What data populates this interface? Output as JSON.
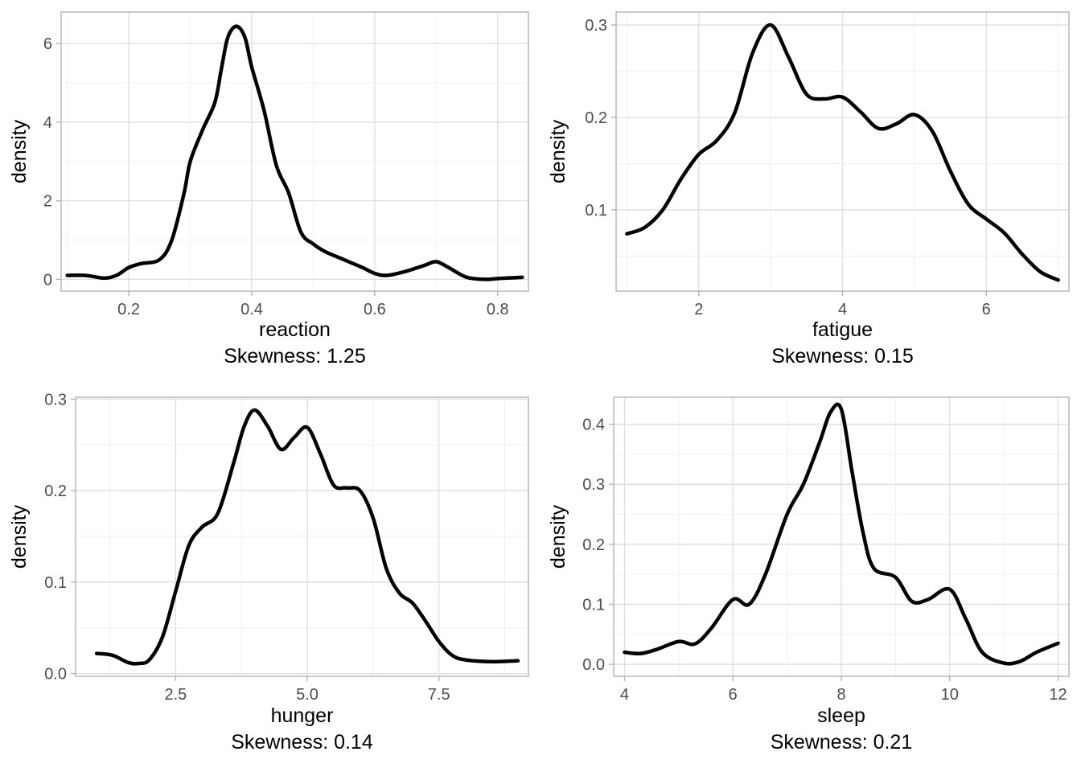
{
  "chart_data": [
    {
      "type": "line",
      "xlabel": "reaction",
      "skew_caption": "Skewness: 1.25",
      "ylabel": "density",
      "xlim": [
        0.09,
        0.85
      ],
      "ylim": [
        -0.3,
        6.8
      ],
      "xticks": [
        0.2,
        0.4,
        0.6,
        0.8
      ],
      "xtick_labels": [
        "0.2",
        "0.4",
        "0.6",
        "0.8"
      ],
      "yticks": [
        0,
        2,
        4,
        6
      ],
      "ytick_labels": [
        "0",
        "2",
        "4",
        "6"
      ],
      "grid": true,
      "series": [
        {
          "x": [
            0.1,
            0.13,
            0.16,
            0.18,
            0.2,
            0.22,
            0.25,
            0.27,
            0.29,
            0.3,
            0.32,
            0.34,
            0.35,
            0.36,
            0.37,
            0.38,
            0.39,
            0.4,
            0.42,
            0.44,
            0.46,
            0.48,
            0.5,
            0.52,
            0.55,
            0.58,
            0.6,
            0.62,
            0.65,
            0.68,
            0.7,
            0.72,
            0.75,
            0.78,
            0.8,
            0.84
          ],
          "y": [
            0.1,
            0.1,
            0.03,
            0.1,
            0.3,
            0.4,
            0.5,
            1.0,
            2.2,
            3.0,
            3.8,
            4.5,
            5.3,
            6.1,
            6.4,
            6.4,
            6.1,
            5.4,
            4.3,
            2.9,
            2.2,
            1.2,
            0.9,
            0.7,
            0.5,
            0.3,
            0.15,
            0.1,
            0.2,
            0.35,
            0.45,
            0.3,
            0.05,
            0.0,
            0.02,
            0.05
          ]
        }
      ]
    },
    {
      "type": "line",
      "xlabel": "fatigue",
      "skew_caption": "Skewness: 0.15",
      "ylabel": "density",
      "xlim": [
        0.85,
        7.15
      ],
      "ylim": [
        0.012,
        0.314
      ],
      "xticks": [
        2,
        4,
        6
      ],
      "xtick_labels": [
        "2",
        "4",
        "6"
      ],
      "yticks": [
        0.1,
        0.2,
        0.3
      ],
      "ytick_labels": [
        "0.1",
        "0.2",
        "0.3"
      ],
      "grid": true,
      "series": [
        {
          "x": [
            1.0,
            1.25,
            1.5,
            1.75,
            2.0,
            2.25,
            2.5,
            2.75,
            3.0,
            3.25,
            3.5,
            3.75,
            4.0,
            4.25,
            4.5,
            4.75,
            5.0,
            5.25,
            5.5,
            5.75,
            6.0,
            6.25,
            6.5,
            6.75,
            7.0
          ],
          "y": [
            0.074,
            0.081,
            0.1,
            0.133,
            0.16,
            0.175,
            0.205,
            0.27,
            0.3,
            0.265,
            0.225,
            0.22,
            0.222,
            0.206,
            0.188,
            0.193,
            0.203,
            0.185,
            0.142,
            0.106,
            0.09,
            0.075,
            0.052,
            0.033,
            0.024
          ]
        }
      ]
    },
    {
      "type": "line",
      "xlabel": "hunger",
      "skew_caption": "Skewness: 0.14",
      "ylabel": "density",
      "xlim": [
        0.6,
        9.2
      ],
      "ylim": [
        -0.003,
        0.302
      ],
      "xticks": [
        2.5,
        5.0,
        7.5
      ],
      "xtick_labels": [
        "2.5",
        "5.0",
        "7.5"
      ],
      "yticks": [
        0.0,
        0.1,
        0.2,
        0.3
      ],
      "ytick_labels": [
        "0.0",
        "0.1",
        "0.2",
        "0.3"
      ],
      "grid": true,
      "series": [
        {
          "x": [
            1.0,
            1.3,
            1.6,
            1.8,
            2.0,
            2.25,
            2.5,
            2.75,
            3.0,
            3.3,
            3.6,
            3.8,
            4.0,
            4.25,
            4.5,
            4.75,
            5.0,
            5.25,
            5.5,
            5.75,
            6.0,
            6.25,
            6.5,
            6.75,
            7.0,
            7.25,
            7.5,
            7.75,
            8.0,
            8.5,
            9.0
          ],
          "y": [
            0.022,
            0.02,
            0.012,
            0.011,
            0.015,
            0.04,
            0.09,
            0.14,
            0.16,
            0.175,
            0.23,
            0.27,
            0.288,
            0.27,
            0.245,
            0.258,
            0.269,
            0.24,
            0.206,
            0.203,
            0.2,
            0.17,
            0.115,
            0.088,
            0.077,
            0.057,
            0.035,
            0.02,
            0.015,
            0.013,
            0.014
          ]
        }
      ]
    },
    {
      "type": "line",
      "xlabel": "sleep",
      "skew_caption": "Skewness: 0.21",
      "ylabel": "density",
      "xlim": [
        3.8,
        12.2
      ],
      "ylim": [
        -0.02,
        0.445
      ],
      "xticks": [
        4,
        6,
        8,
        10,
        12
      ],
      "xtick_labels": [
        "4",
        "6",
        "8",
        "10",
        "12"
      ],
      "yticks": [
        0.0,
        0.1,
        0.2,
        0.3,
        0.4
      ],
      "ytick_labels": [
        "0.0",
        "0.1",
        "0.2",
        "0.3",
        "0.4"
      ],
      "grid": true,
      "series": [
        {
          "x": [
            4.0,
            4.3,
            4.6,
            5.0,
            5.3,
            5.6,
            6.0,
            6.3,
            6.6,
            7.0,
            7.3,
            7.6,
            7.8,
            8.0,
            8.2,
            8.4,
            8.6,
            9.0,
            9.3,
            9.6,
            10.0,
            10.3,
            10.6,
            11.0,
            11.3,
            11.6,
            12.0
          ],
          "y": [
            0.02,
            0.018,
            0.025,
            0.038,
            0.034,
            0.06,
            0.108,
            0.1,
            0.15,
            0.25,
            0.3,
            0.37,
            0.42,
            0.425,
            0.32,
            0.22,
            0.16,
            0.145,
            0.105,
            0.108,
            0.125,
            0.075,
            0.02,
            0.002,
            0.005,
            0.02,
            0.035
          ]
        }
      ]
    }
  ]
}
